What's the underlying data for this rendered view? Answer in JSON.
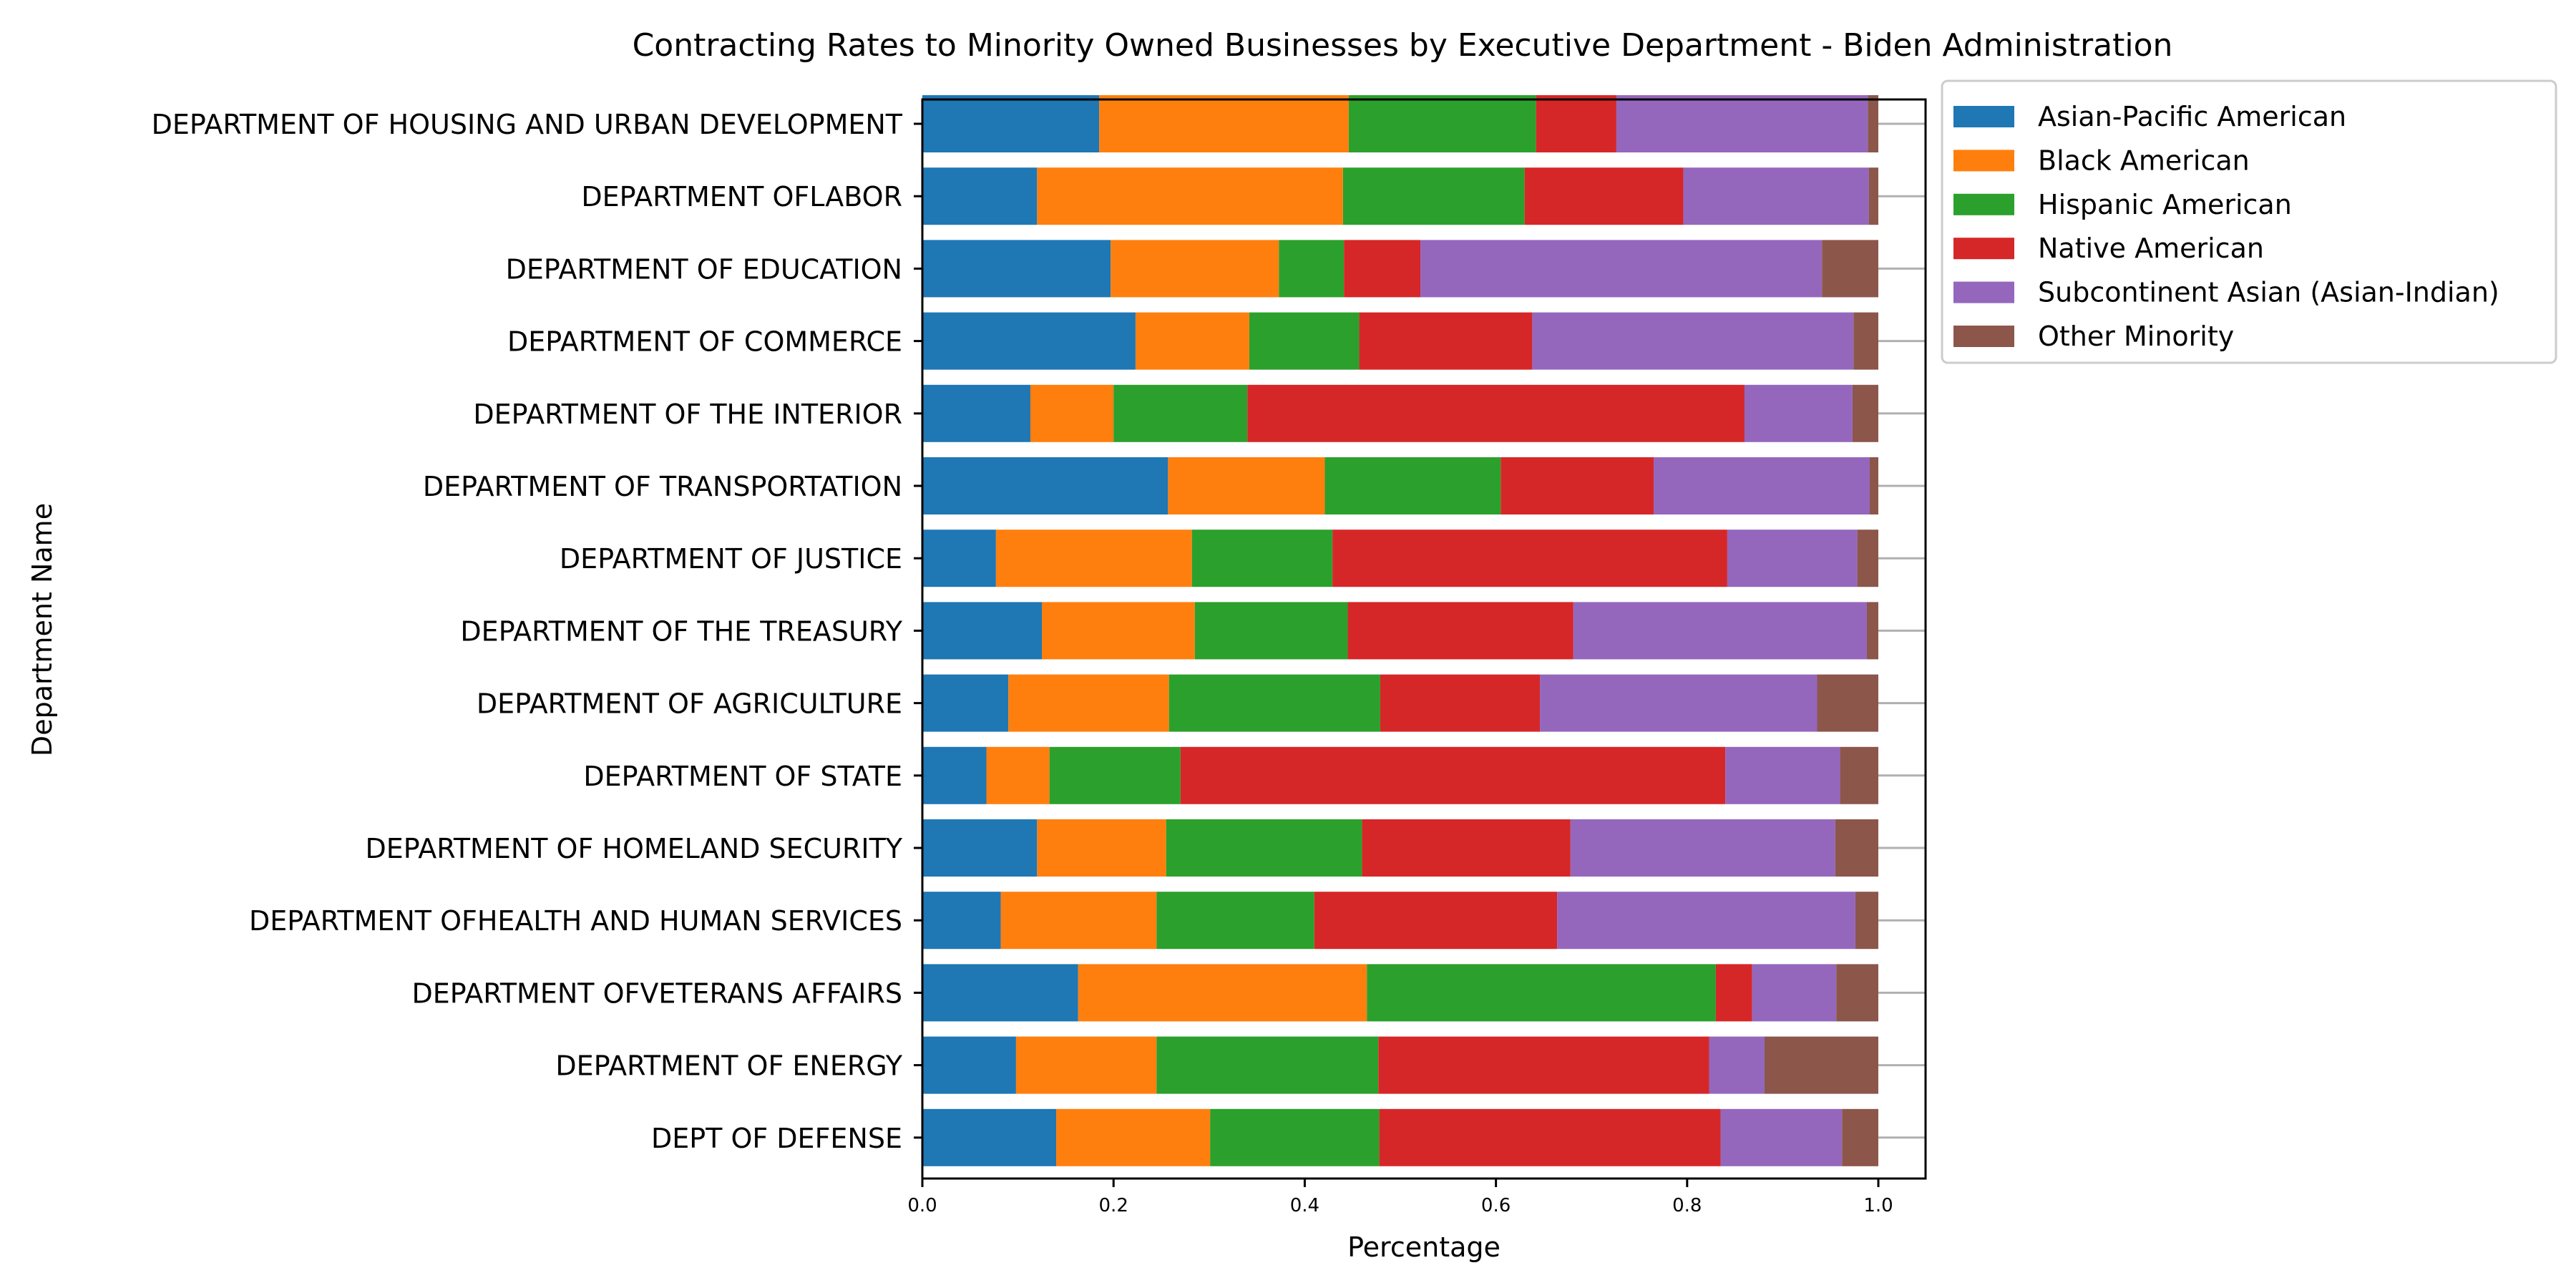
{
  "chart_data": {
    "type": "bar",
    "orientation": "horizontal",
    "stacked": true,
    "title": "Contracting Rates to Minority Owned Businesses by Executive Department - Biden Administration",
    "xlabel": "Percentage",
    "ylabel": "Department Name",
    "xlim": [
      0,
      1.05
    ],
    "xticks": [
      "0.0",
      "0.2",
      "0.4",
      "0.6",
      "0.8",
      "1.0"
    ],
    "legend_position": "upper-right-outside",
    "grid": false,
    "categories": [
      "DEPARTMENT OF HOUSING AND URBAN DEVELOPMENT",
      "DEPARTMENT OFLABOR",
      "DEPARTMENT OF EDUCATION",
      "DEPARTMENT OF COMMERCE ",
      "DEPARTMENT OF THE INTERIOR",
      "DEPARTMENT OF TRANSPORTATION",
      "DEPARTMENT OF JUSTICE",
      "DEPARTMENT OF THE TREASURY",
      "DEPARTMENT OF AGRICULTURE",
      "DEPARTMENT OF STATE",
      "DEPARTMENT OF HOMELAND SECURITY",
      "DEPARTMENT OFHEALTH AND HUMAN SERVICES",
      "DEPARTMENT OFVETERANS AFFAIRS",
      "DEPARTMENT OF ENERGY",
      "DEPT OF DEFENSE"
    ],
    "series": [
      {
        "name": "Asian-Pacific American",
        "color": "#1f77b4",
        "values": [
          0.185,
          0.12,
          0.197,
          0.223,
          0.113,
          0.257,
          0.077,
          0.125,
          0.09,
          0.067,
          0.12,
          0.082,
          0.163,
          0.098,
          0.14
        ]
      },
      {
        "name": "Black American",
        "color": "#ff7f0e",
        "values": [
          0.261,
          0.32,
          0.176,
          0.119,
          0.087,
          0.164,
          0.205,
          0.16,
          0.168,
          0.066,
          0.135,
          0.163,
          0.302,
          0.147,
          0.161
        ]
      },
      {
        "name": "Hispanic American",
        "color": "#2ca02c",
        "values": [
          0.196,
          0.19,
          0.068,
          0.115,
          0.14,
          0.184,
          0.147,
          0.16,
          0.221,
          0.137,
          0.205,
          0.165,
          0.365,
          0.232,
          0.177
        ]
      },
      {
        "name": "Native American",
        "color": "#d62728",
        "values": [
          0.084,
          0.166,
          0.08,
          0.181,
          0.52,
          0.16,
          0.413,
          0.236,
          0.167,
          0.57,
          0.218,
          0.254,
          0.038,
          0.346,
          0.357
        ]
      },
      {
        "name": "Subcontinent Asian (Asian-Indian)",
        "color": "#9467bd",
        "values": [
          0.263,
          0.194,
          0.42,
          0.336,
          0.113,
          0.226,
          0.136,
          0.307,
          0.29,
          0.12,
          0.277,
          0.312,
          0.088,
          0.058,
          0.127
        ]
      },
      {
        "name": "Other Minority",
        "color": "#8c564b",
        "values": [
          0.011,
          0.01,
          0.059,
          0.026,
          0.027,
          0.009,
          0.022,
          0.012,
          0.064,
          0.04,
          0.045,
          0.024,
          0.044,
          0.119,
          0.038
        ]
      }
    ]
  }
}
